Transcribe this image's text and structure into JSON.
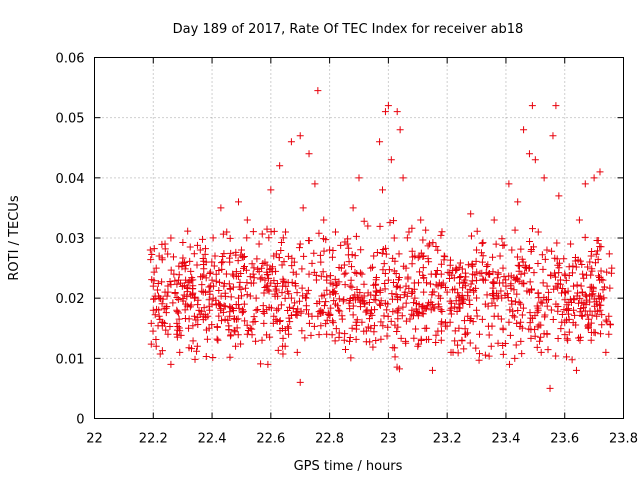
{
  "chart_data": {
    "type": "scatter",
    "title": "Day 189 of 2017, Rate Of TEC Index for receiver ab18",
    "xlabel": "GPS time / hours",
    "ylabel": "ROTI / TECUs",
    "xlim": [
      22,
      23.8
    ],
    "ylim": [
      0,
      0.06
    ],
    "x_ticks": [
      "22",
      "22.2",
      "22.4",
      "22.6",
      "22.8",
      "23",
      "23.2",
      "23.4",
      "23.6",
      "23.8"
    ],
    "y_ticks": [
      "0",
      "0.01",
      "0.02",
      "0.03",
      "0.04",
      "0.05",
      "0.06"
    ],
    "grid": true,
    "marker": "+",
    "marker_color": "#e8000b",
    "x_range_covered": [
      22.19,
      23.76
    ],
    "series": [
      {
        "name": "ROTI",
        "points": [
          [
            22.19,
            0.028
          ],
          [
            22.2,
            0.022
          ],
          [
            22.2,
            0.018
          ],
          [
            22.21,
            0.025
          ],
          [
            22.21,
            0.012
          ],
          [
            22.22,
            0.02
          ],
          [
            22.22,
            0.027
          ],
          [
            22.23,
            0.016
          ],
          [
            22.24,
            0.021
          ],
          [
            22.24,
            0.029
          ],
          [
            22.25,
            0.014
          ],
          [
            22.26,
            0.009
          ],
          [
            22.26,
            0.03
          ],
          [
            22.27,
            0.024
          ],
          [
            22.28,
            0.018
          ],
          [
            22.29,
            0.011
          ],
          [
            22.3,
            0.026
          ],
          [
            22.31,
            0.019
          ],
          [
            22.32,
            0.015
          ],
          [
            22.33,
            0.023
          ],
          [
            22.34,
            0.017
          ],
          [
            22.35,
            0.012
          ],
          [
            22.36,
            0.028
          ],
          [
            22.37,
            0.021
          ],
          [
            22.38,
            0.026
          ],
          [
            22.39,
            0.015
          ],
          [
            22.4,
            0.019
          ],
          [
            22.41,
            0.027
          ],
          [
            22.42,
            0.013
          ],
          [
            22.43,
            0.035
          ],
          [
            22.44,
            0.022
          ],
          [
            22.45,
            0.031
          ],
          [
            22.46,
            0.017
          ],
          [
            22.47,
            0.024
          ],
          [
            22.48,
            0.012
          ],
          [
            22.49,
            0.036
          ],
          [
            22.5,
            0.028
          ],
          [
            22.51,
            0.019
          ],
          [
            22.52,
            0.033
          ],
          [
            22.53,
            0.015
          ],
          [
            22.54,
            0.024
          ],
          [
            22.55,
            0.02
          ],
          [
            22.56,
            0.029
          ],
          [
            22.57,
            0.013
          ],
          [
            22.58,
            0.023
          ],
          [
            22.59,
            0.009
          ],
          [
            22.6,
            0.038
          ],
          [
            22.61,
            0.027
          ],
          [
            22.62,
            0.018
          ],
          [
            22.63,
            0.042
          ],
          [
            22.64,
            0.022
          ],
          [
            22.65,
            0.031
          ],
          [
            22.66,
            0.015
          ],
          [
            22.67,
            0.046
          ],
          [
            22.68,
            0.026
          ],
          [
            22.69,
            0.011
          ],
          [
            22.7,
            0.047
          ],
          [
            22.7,
            0.006
          ],
          [
            22.71,
            0.035
          ],
          [
            22.72,
            0.02
          ],
          [
            22.73,
            0.044
          ],
          [
            22.74,
            0.017
          ],
          [
            22.75,
            0.039
          ],
          [
            22.76,
            0.0545
          ],
          [
            22.77,
            0.026
          ],
          [
            22.78,
            0.033
          ],
          [
            22.79,
            0.014
          ],
          [
            22.8,
            0.028
          ],
          [
            22.81,
            0.021
          ],
          [
            22.82,
            0.031
          ],
          [
            22.83,
            0.018
          ],
          [
            22.84,
            0.025
          ],
          [
            22.85,
            0.013
          ],
          [
            22.86,
            0.029
          ],
          [
            22.87,
            0.022
          ],
          [
            22.88,
            0.035
          ],
          [
            22.89,
            0.016
          ],
          [
            22.9,
            0.04
          ],
          [
            22.91,
            0.024
          ],
          [
            22.92,
            0.019
          ],
          [
            22.93,
            0.032
          ],
          [
            22.94,
            0.015
          ],
          [
            22.95,
            0.027
          ],
          [
            22.96,
            0.021
          ],
          [
            22.97,
            0.046
          ],
          [
            22.98,
            0.038
          ],
          [
            22.99,
            0.051
          ],
          [
            23.0,
            0.052
          ],
          [
            23.01,
            0.043
          ],
          [
            23.02,
            0.03
          ],
          [
            23.03,
            0.051
          ],
          [
            23.04,
            0.048
          ],
          [
            23.05,
            0.04
          ],
          [
            23.06,
            0.022
          ],
          [
            23.07,
            0.031
          ],
          [
            23.08,
            0.018
          ],
          [
            23.09,
            0.027
          ],
          [
            23.1,
            0.012
          ],
          [
            23.11,
            0.033
          ],
          [
            23.12,
            0.021
          ],
          [
            23.13,
            0.015
          ],
          [
            23.14,
            0.029
          ],
          [
            23.15,
            0.008
          ],
          [
            23.16,
            0.024
          ],
          [
            23.17,
            0.019
          ],
          [
            23.18,
            0.013
          ],
          [
            23.19,
            0.027
          ],
          [
            23.2,
            0.021
          ],
          [
            23.21,
            0.016
          ],
          [
            23.22,
            0.011
          ],
          [
            23.23,
            0.025
          ],
          [
            23.24,
            0.019
          ],
          [
            23.25,
            0.013
          ],
          [
            23.26,
            0.023
          ],
          [
            23.27,
            0.017
          ],
          [
            23.28,
            0.034
          ],
          [
            23.29,
            0.021
          ],
          [
            23.3,
            0.028
          ],
          [
            23.31,
            0.014
          ],
          [
            23.32,
            0.026
          ],
          [
            23.33,
            0.019
          ],
          [
            23.34,
            0.024
          ],
          [
            23.35,
            0.012
          ],
          [
            23.36,
            0.033
          ],
          [
            23.37,
            0.02
          ],
          [
            23.38,
            0.027
          ],
          [
            23.39,
            0.015
          ],
          [
            23.4,
            0.022
          ],
          [
            23.41,
            0.039
          ],
          [
            23.42,
            0.028
          ],
          [
            23.43,
            0.01
          ],
          [
            23.44,
            0.036
          ],
          [
            23.45,
            0.019
          ],
          [
            23.46,
            0.048
          ],
          [
            23.47,
            0.025
          ],
          [
            23.48,
            0.044
          ],
          [
            23.49,
            0.052
          ],
          [
            23.5,
            0.043
          ],
          [
            23.51,
            0.031
          ],
          [
            23.52,
            0.011
          ],
          [
            23.53,
            0.04
          ],
          [
            23.54,
            0.022
          ],
          [
            23.55,
            0.005
          ],
          [
            23.56,
            0.047
          ],
          [
            23.57,
            0.052
          ],
          [
            23.58,
            0.037
          ],
          [
            23.59,
            0.016
          ],
          [
            23.6,
            0.024
          ],
          [
            23.61,
            0.013
          ],
          [
            23.62,
            0.029
          ],
          [
            23.63,
            0.018
          ],
          [
            23.64,
            0.008
          ],
          [
            23.65,
            0.033
          ],
          [
            23.66,
            0.021
          ],
          [
            23.67,
            0.039
          ],
          [
            23.68,
            0.015
          ],
          [
            23.69,
            0.027
          ],
          [
            23.7,
            0.04
          ],
          [
            23.71,
            0.019
          ],
          [
            23.72,
            0.041
          ],
          [
            23.73,
            0.023
          ],
          [
            23.74,
            0.011
          ],
          [
            23.75,
            0.017
          ],
          [
            23.76,
            0.025
          ],
          [
            22.22,
            0.017
          ],
          [
            22.25,
            0.021
          ],
          [
            22.28,
            0.014
          ],
          [
            22.31,
            0.023
          ],
          [
            22.34,
            0.02
          ],
          [
            22.37,
            0.017
          ],
          [
            22.4,
            0.023
          ],
          [
            22.43,
            0.018
          ],
          [
            22.46,
            0.026
          ],
          [
            22.49,
            0.02
          ],
          [
            22.52,
            0.014
          ],
          [
            22.55,
            0.018
          ],
          [
            22.58,
            0.026
          ],
          [
            22.61,
            0.017
          ],
          [
            22.64,
            0.012
          ],
          [
            22.67,
            0.02
          ],
          [
            22.7,
            0.029
          ],
          [
            22.73,
            0.024
          ],
          [
            22.76,
            0.017
          ],
          [
            22.79,
            0.023
          ],
          [
            22.82,
            0.019
          ],
          [
            22.85,
            0.024
          ],
          [
            22.88,
            0.02
          ],
          [
            22.91,
            0.016
          ],
          [
            22.94,
            0.025
          ],
          [
            22.97,
            0.019
          ],
          [
            23.0,
            0.023
          ],
          [
            23.03,
            0.018
          ],
          [
            23.06,
            0.025
          ],
          [
            23.09,
            0.02
          ],
          [
            23.12,
            0.027
          ],
          [
            23.15,
            0.021
          ],
          [
            23.18,
            0.024
          ],
          [
            23.21,
            0.018
          ],
          [
            23.24,
            0.015
          ],
          [
            23.27,
            0.021
          ],
          [
            23.3,
            0.018
          ],
          [
            23.33,
            0.023
          ],
          [
            23.36,
            0.017
          ],
          [
            23.39,
            0.025
          ],
          [
            23.42,
            0.019
          ],
          [
            23.45,
            0.016
          ],
          [
            23.48,
            0.021
          ],
          [
            23.51,
            0.018
          ],
          [
            23.54,
            0.014
          ],
          [
            23.57,
            0.019
          ],
          [
            23.6,
            0.016
          ],
          [
            23.63,
            0.022
          ],
          [
            23.66,
            0.017
          ],
          [
            23.69,
            0.013
          ],
          [
            23.72,
            0.018
          ],
          [
            23.75,
            0.014
          ]
        ]
      }
    ]
  }
}
